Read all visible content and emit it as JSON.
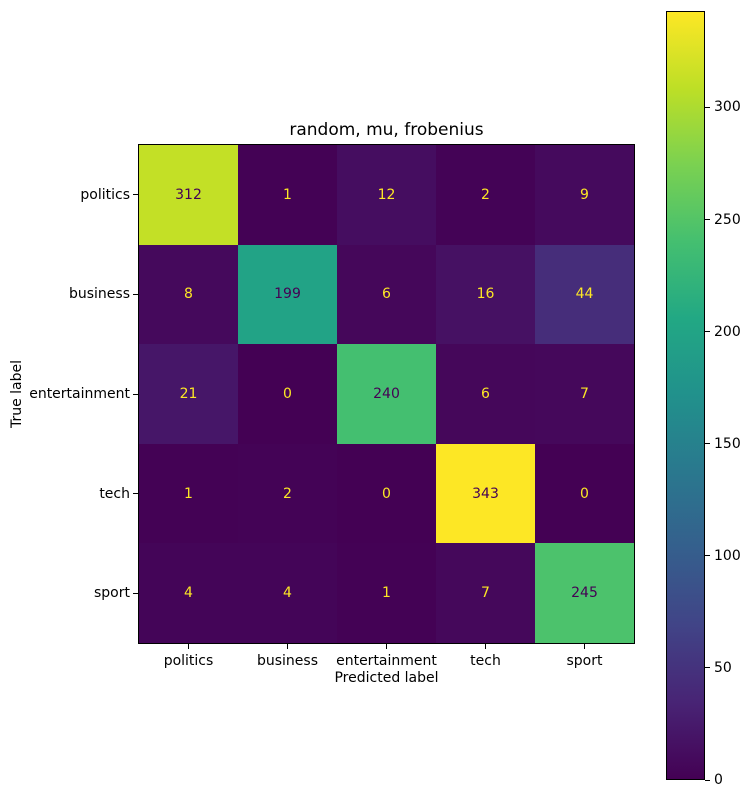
{
  "chart_data": {
    "type": "heatmap",
    "title": "random, mu, frobenius",
    "xlabel": "Predicted label",
    "ylabel": "True label",
    "x_categories": [
      "politics",
      "business",
      "entertainment",
      "tech",
      "sport"
    ],
    "y_categories": [
      "politics",
      "business",
      "entertainment",
      "tech",
      "sport"
    ],
    "matrix": [
      [
        312,
        1,
        12,
        2,
        9
      ],
      [
        8,
        199,
        6,
        16,
        44
      ],
      [
        21,
        0,
        240,
        6,
        7
      ],
      [
        1,
        2,
        0,
        343,
        0
      ],
      [
        4,
        4,
        1,
        7,
        245
      ]
    ],
    "vmin": 0,
    "vmax": 343,
    "colormap": "viridis",
    "colormap_stops": [
      "#440154",
      "#482475",
      "#414487",
      "#355f8d",
      "#2a788e",
      "#21918c",
      "#22a884",
      "#44bf70",
      "#7ad151",
      "#bddf26",
      "#fde725"
    ],
    "annotation_colors": {
      "on_dark_cells": "#fde725",
      "on_bright_cells": "#440154"
    },
    "colorbar_ticks": [
      0,
      50,
      100,
      150,
      200,
      250,
      300
    ],
    "colorbar_position": "right",
    "grid": false
  }
}
